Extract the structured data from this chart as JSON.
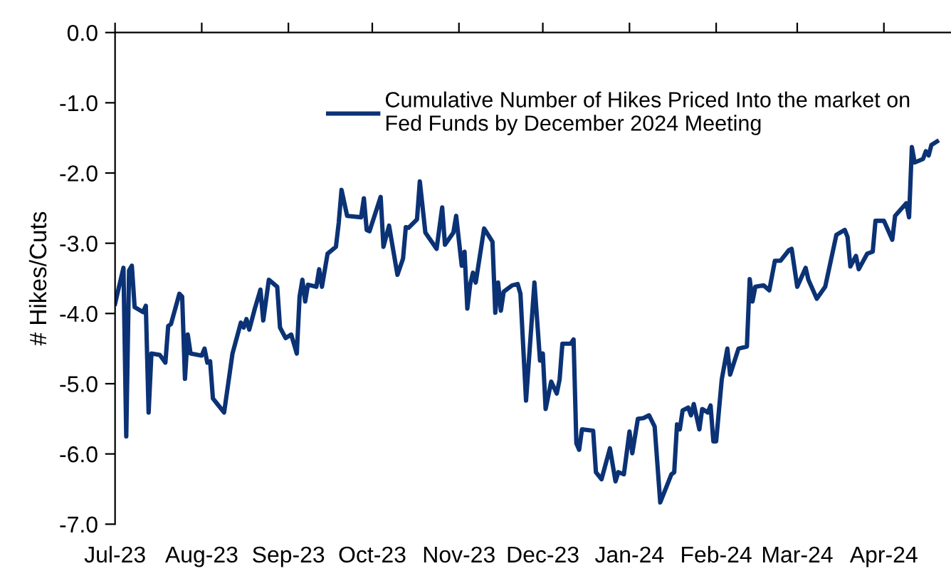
{
  "chart_data": {
    "type": "line",
    "ylabel": "# Hikes/Cuts",
    "legend": "top right",
    "grid": false,
    "line_style": "solid",
    "marker": "none",
    "xlim": [
      "2023-07-01",
      "2024-04-25"
    ],
    "xticks": [
      {
        "value": "2023-07-01",
        "label": "Jul-23"
      },
      {
        "value": "2023-08-01",
        "label": "Aug-23"
      },
      {
        "value": "2023-09-01",
        "label": "Sep-23"
      },
      {
        "value": "2023-10-01",
        "label": "Oct-23"
      },
      {
        "value": "2023-11-01",
        "label": "Nov-23"
      },
      {
        "value": "2023-12-01",
        "label": "Dec-23"
      },
      {
        "value": "2024-01-01",
        "label": "Jan-24"
      },
      {
        "value": "2024-02-01",
        "label": "Feb-24"
      },
      {
        "value": "2024-03-01",
        "label": "Mar-24"
      },
      {
        "value": "2024-04-01",
        "label": "Apr-24"
      }
    ],
    "ylim": [
      -7,
      0
    ],
    "yticks": [
      {
        "value": 0,
        "label": "0.0"
      },
      {
        "value": -1,
        "label": "-1.0"
      },
      {
        "value": -2,
        "label": "-2.0"
      },
      {
        "value": -3,
        "label": "-3.0"
      },
      {
        "value": -4,
        "label": "-4.0"
      },
      {
        "value": -5,
        "label": "-5.0"
      },
      {
        "value": -6,
        "label": "-6.0"
      },
      {
        "value": -7,
        "label": "-7.0"
      }
    ],
    "x": [
      "2023-07-01",
      "2023-07-04",
      "2023-07-05",
      "2023-07-06",
      "2023-07-07",
      "2023-07-08",
      "2023-07-11",
      "2023-07-12",
      "2023-07-13",
      "2023-07-14",
      "2023-07-17",
      "2023-07-19",
      "2023-07-20",
      "2023-07-21",
      "2023-07-24",
      "2023-07-25",
      "2023-07-26",
      "2023-07-27",
      "2023-07-28",
      "2023-08-01",
      "2023-08-02",
      "2023-08-03",
      "2023-08-04",
      "2023-08-05",
      "2023-08-07",
      "2023-08-09",
      "2023-08-12",
      "2023-08-15",
      "2023-08-16",
      "2023-08-17",
      "2023-08-18",
      "2023-08-20",
      "2023-08-22",
      "2023-08-23",
      "2023-08-25",
      "2023-08-28",
      "2023-08-29",
      "2023-08-31",
      "2023-09-02",
      "2023-09-04",
      "2023-09-05",
      "2023-09-06",
      "2023-09-07",
      "2023-09-08",
      "2023-09-11",
      "2023-09-12",
      "2023-09-13",
      "2023-09-15",
      "2023-09-18",
      "2023-09-19",
      "2023-09-20",
      "2023-09-22",
      "2023-09-27",
      "2023-09-28",
      "2023-09-29",
      "2023-09-30",
      "2023-10-04",
      "2023-10-05",
      "2023-10-07",
      "2023-10-10",
      "2023-10-12",
      "2023-10-13",
      "2023-10-14",
      "2023-10-17",
      "2023-10-18",
      "2023-10-20",
      "2023-10-24",
      "2023-10-26",
      "2023-10-27",
      "2023-10-30",
      "2023-10-31",
      "2023-11-02",
      "2023-11-03",
      "2023-11-04",
      "2023-11-05",
      "2023-11-06",
      "2023-11-07",
      "2023-11-10",
      "2023-11-13",
      "2023-11-14",
      "2023-11-15",
      "2023-11-16",
      "2023-11-17",
      "2023-11-20",
      "2023-11-22",
      "2023-11-23",
      "2023-11-25",
      "2023-11-28",
      "2023-11-30",
      "2023-12-01",
      "2023-12-02",
      "2023-12-04",
      "2023-12-06",
      "2023-12-07",
      "2023-12-08",
      "2023-12-11",
      "2023-12-12",
      "2023-12-13",
      "2023-12-14",
      "2023-12-15",
      "2023-12-19",
      "2023-12-20",
      "2023-12-22",
      "2023-12-25",
      "2023-12-27",
      "2023-12-28",
      "2023-12-30",
      "2024-01-01",
      "2024-01-02",
      "2024-01-04",
      "2024-01-06",
      "2024-01-08",
      "2024-01-10",
      "2024-01-12",
      "2024-01-16",
      "2024-01-17",
      "2024-01-18",
      "2024-01-19",
      "2024-01-20",
      "2024-01-22",
      "2024-01-23",
      "2024-01-24",
      "2024-01-26",
      "2024-01-27",
      "2024-01-29",
      "2024-01-30",
      "2024-01-31",
      "2024-02-01",
      "2024-02-03",
      "2024-02-05",
      "2024-02-06",
      "2024-02-09",
      "2024-02-12",
      "2024-02-13",
      "2024-02-14",
      "2024-02-15",
      "2024-02-18",
      "2024-02-20",
      "2024-02-22",
      "2024-02-24",
      "2024-02-27",
      "2024-02-28",
      "2024-02-29",
      "2024-03-01",
      "2024-03-04",
      "2024-03-05",
      "2024-03-08",
      "2024-03-11",
      "2024-03-15",
      "2024-03-18",
      "2024-03-19",
      "2024-03-20",
      "2024-03-22",
      "2024-03-23",
      "2024-03-26",
      "2024-03-28",
      "2024-03-29",
      "2024-04-01",
      "2024-04-04",
      "2024-04-05",
      "2024-04-09",
      "2024-04-10",
      "2024-04-11",
      "2024-04-12",
      "2024-04-15",
      "2024-04-16",
      "2024-04-17",
      "2024-04-18",
      "2024-04-20"
    ],
    "series": [
      {
        "name": "Cumulative Number of Hikes Priced Into the market on\nFed Funds by December 2024 Meeting",
        "color": "#0b3275",
        "values": [
          -3.86,
          -3.35,
          -5.75,
          -3.39,
          -3.32,
          -3.91,
          -3.98,
          -3.89,
          -5.41,
          -4.57,
          -4.59,
          -4.7,
          -4.18,
          -4.15,
          -3.72,
          -3.76,
          -4.93,
          -4.3,
          -4.57,
          -4.6,
          -4.5,
          -4.7,
          -4.68,
          -5.21,
          -5.31,
          -5.41,
          -4.57,
          -4.13,
          -4.2,
          -4.08,
          -4.23,
          -3.93,
          -3.66,
          -4.1,
          -3.52,
          -3.62,
          -4.2,
          -4.35,
          -4.3,
          -4.57,
          -3.76,
          -3.52,
          -3.83,
          -3.59,
          -3.62,
          -3.37,
          -3.62,
          -3.15,
          -3.05,
          -2.71,
          -2.24,
          -2.61,
          -2.63,
          -2.36,
          -2.81,
          -2.83,
          -2.34,
          -3.05,
          -2.75,
          -3.45,
          -3.22,
          -2.77,
          -2.78,
          -2.66,
          -2.12,
          -2.85,
          -3.08,
          -2.49,
          -3.02,
          -2.85,
          -2.61,
          -3.32,
          -3.12,
          -3.93,
          -3.59,
          -3.42,
          -3.56,
          -2.79,
          -2.98,
          -3.99,
          -3.56,
          -3.96,
          -3.69,
          -3.6,
          -3.58,
          -3.72,
          -5.24,
          -3.56,
          -4.67,
          -4.57,
          -5.36,
          -4.97,
          -5.14,
          -4.94,
          -4.43,
          -4.43,
          -4.37,
          -5.85,
          -5.94,
          -5.65,
          -5.67,
          -6.26,
          -6.36,
          -5.92,
          -6.39,
          -6.26,
          -6.29,
          -5.68,
          -5.99,
          -5.5,
          -5.49,
          -5.45,
          -5.61,
          -6.69,
          -6.29,
          -6.26,
          -5.58,
          -5.65,
          -5.38,
          -5.34,
          -5.45,
          -5.29,
          -5.65,
          -5.36,
          -5.41,
          -5.31,
          -5.82,
          -5.82,
          -4.94,
          -4.5,
          -4.87,
          -4.5,
          -4.47,
          -3.51,
          -3.83,
          -3.62,
          -3.6,
          -3.67,
          -3.25,
          -3.25,
          -3.1,
          -3.08,
          -3.35,
          -3.62,
          -3.35,
          -3.52,
          -3.79,
          -3.62,
          -2.88,
          -2.81,
          -2.91,
          -3.33,
          -3.18,
          -3.37,
          -3.15,
          -3.12,
          -2.68,
          -2.68,
          -2.95,
          -2.61,
          -2.43,
          -2.63,
          -1.63,
          -1.85,
          -1.8,
          -1.69,
          -1.75,
          -1.6,
          -1.55
        ]
      }
    ]
  }
}
